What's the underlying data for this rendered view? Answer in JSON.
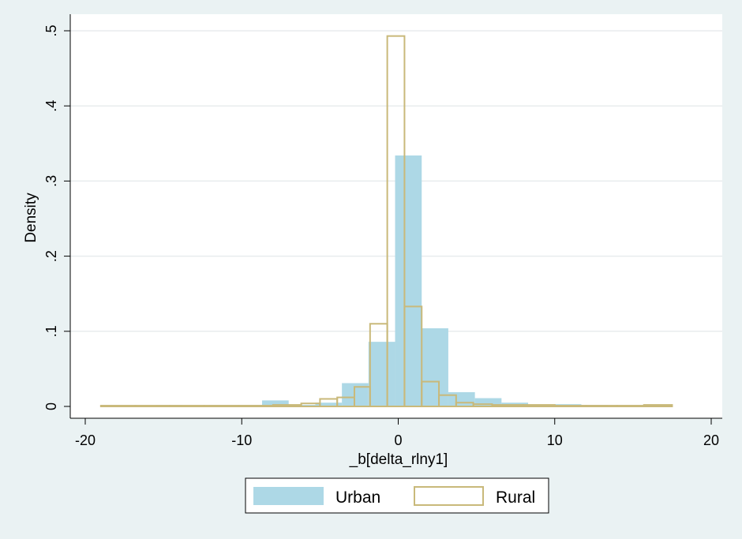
{
  "chart_data": {
    "type": "histogram",
    "title": "",
    "xlabel": "_b[delta_rlny1]",
    "ylabel": "Density",
    "xlim": [
      -20,
      20
    ],
    "ylim": [
      0,
      0.5
    ],
    "x_ticks": [
      {
        "value": -20,
        "label": "-20"
      },
      {
        "value": -10,
        "label": "-10"
      },
      {
        "value": 0,
        "label": "0"
      },
      {
        "value": 10,
        "label": "10"
      },
      {
        "value": 20,
        "label": "20"
      }
    ],
    "y_ticks": [
      {
        "value": 0,
        "label": "0"
      },
      {
        "value": 0.1,
        "label": ".1"
      },
      {
        "value": 0.2,
        "label": ".2"
      },
      {
        "value": 0.3,
        "label": ".3"
      },
      {
        "value": 0.4,
        "label": ".4"
      },
      {
        "value": 0.5,
        "label": ".5"
      }
    ],
    "grid": true,
    "series": [
      {
        "name": "Urban",
        "style": "filled",
        "color": "#add8e6",
        "bin_edges": [
          -15.5,
          -13.8,
          -12.1,
          -10.4,
          -8.7,
          -7.0,
          -5.3,
          -3.6,
          -1.9,
          -0.2,
          1.5,
          3.2,
          4.9,
          6.6,
          8.3,
          10.0,
          11.7,
          13.4
        ],
        "values": [
          0.002,
          0.001,
          0.002,
          0.002,
          0.008,
          0.002,
          0.005,
          0.031,
          0.086,
          0.334,
          0.104,
          0.019,
          0.011,
          0.005,
          0.002,
          0.003,
          0.002
        ]
      },
      {
        "name": "Rural",
        "style": "outline",
        "color": "#c9b97a",
        "bin_edges": [
          -19.0,
          -16.8,
          -14.6,
          -12.4,
          -10.2,
          -8.0,
          -6.2,
          -5.0,
          -3.9,
          -2.8,
          -1.8,
          -0.7,
          0.4,
          1.5,
          2.6,
          3.7,
          4.8,
          6.0,
          8.0,
          10.0,
          12.0,
          14.0,
          15.7,
          17.5
        ],
        "values": [
          0.001,
          0.001,
          0.001,
          0.001,
          0.001,
          0.002,
          0.004,
          0.01,
          0.012,
          0.026,
          0.11,
          0.493,
          0.133,
          0.033,
          0.015,
          0.005,
          0.003,
          0.002,
          0.002,
          0.001,
          0.001,
          0.001,
          0.002
        ]
      }
    ],
    "legend": {
      "placement": "bottom-center",
      "entries": [
        "Urban",
        "Rural"
      ]
    }
  }
}
